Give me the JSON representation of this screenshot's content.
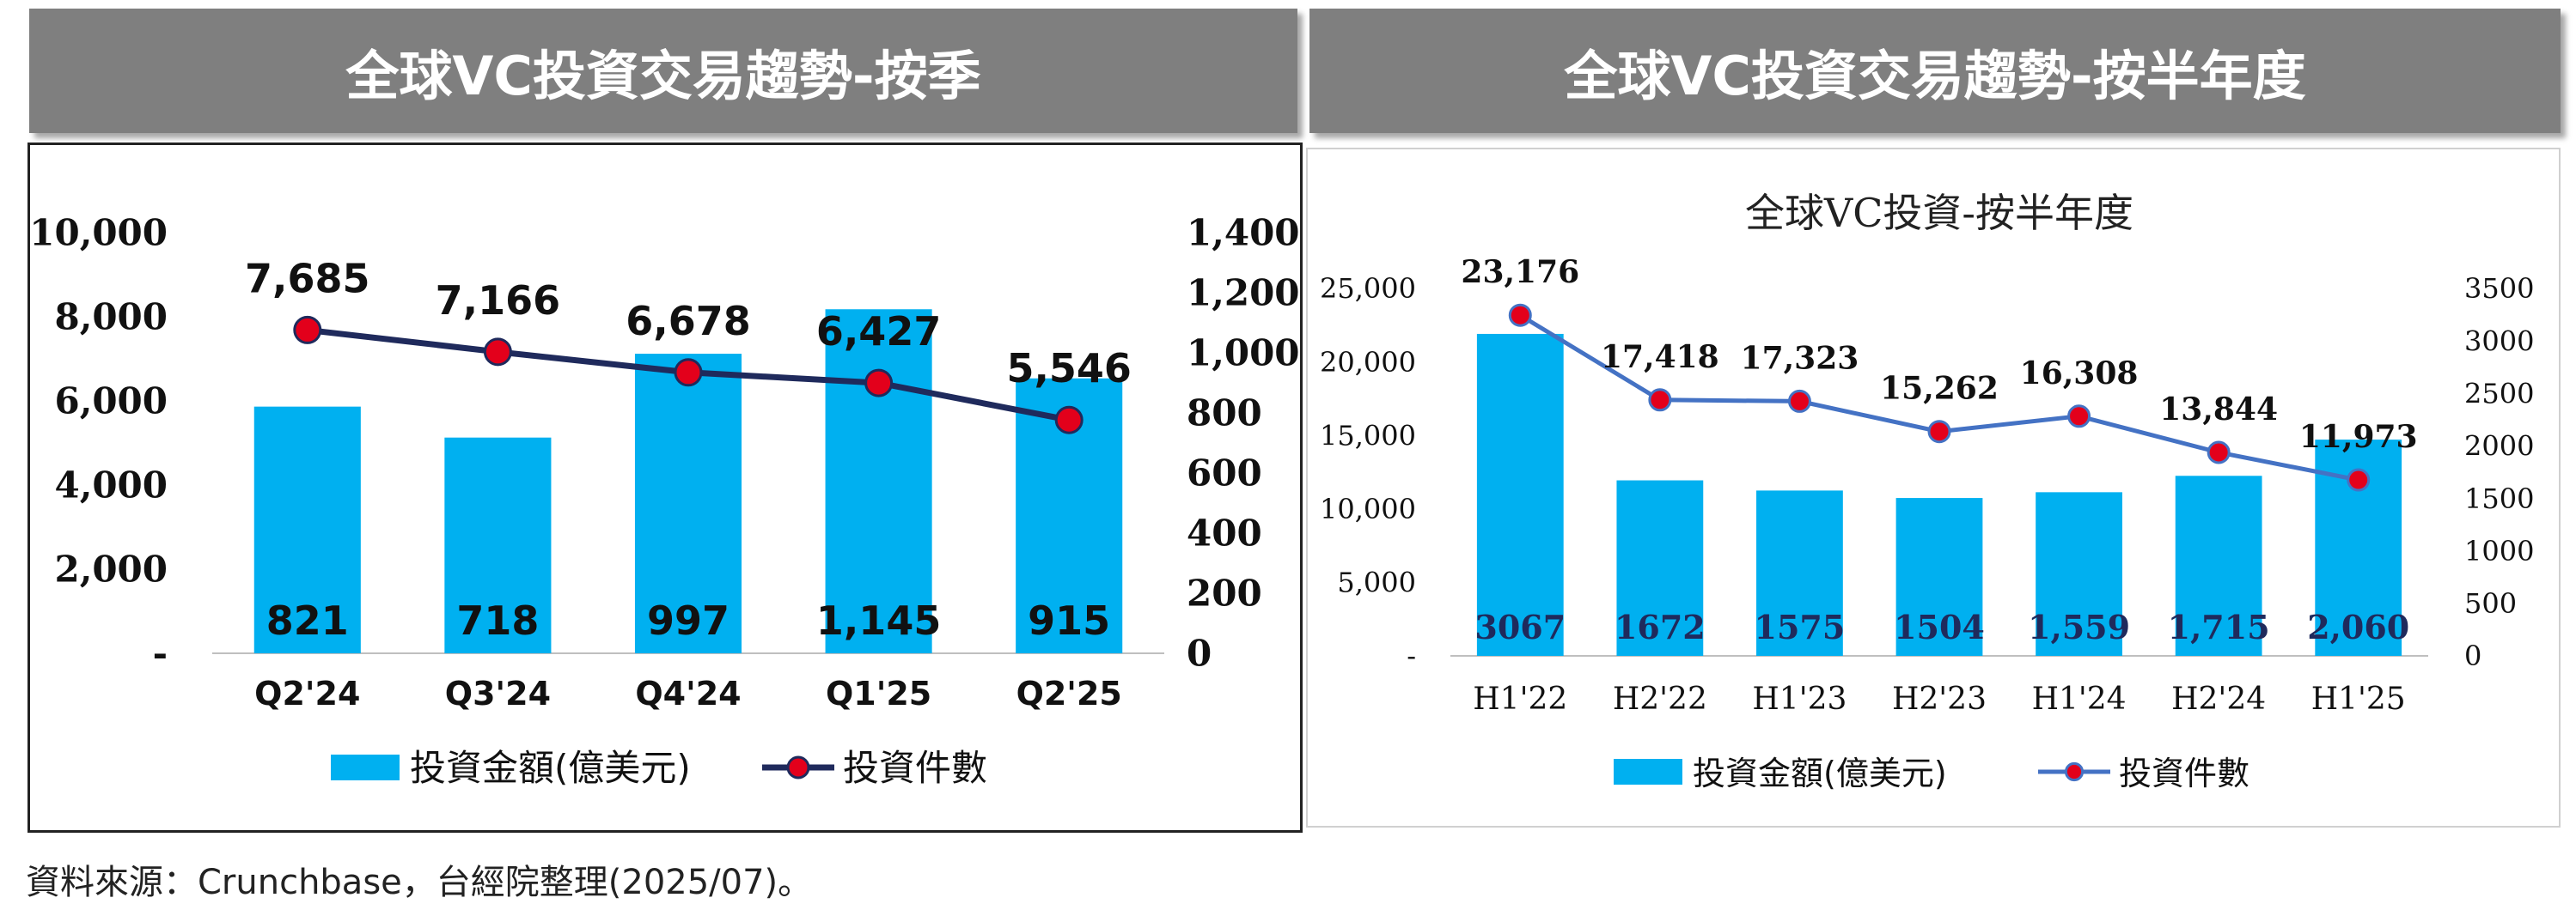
{
  "banners": {
    "left": "全球VC投資交易趨勢-按季",
    "right": "全球VC投資交易趨勢-按半年度"
  },
  "source_note": "資料來源：Crunchbase，台經院整理(2025/07)。",
  "colors": {
    "bar": "#00b0f0",
    "line_q": "#1f2a5c",
    "line_h": "#4472c4",
    "marker": "#e3001b",
    "banner": "#7f7f7f"
  },
  "chart_data": [
    {
      "type": "bar",
      "title": "",
      "categories": [
        "Q2'24",
        "Q3'24",
        "Q4'24",
        "Q1'25",
        "Q2'25"
      ],
      "series": [
        {
          "name": "投資金額(億美元)",
          "type": "bar",
          "axis": "left",
          "values": [
            821,
            718,
            997,
            1145,
            915
          ],
          "labels": [
            "821",
            "718",
            "997",
            "1,145",
            "915"
          ]
        },
        {
          "name": "投資件數",
          "type": "line",
          "axis": "right",
          "values": [
            7685,
            7166,
            6678,
            6427,
            5546
          ],
          "labels": [
            "7,685",
            "7,166",
            "6,678",
            "6,427",
            "5,546"
          ]
        }
      ],
      "left_axis": {
        "ylim": [
          0,
          10000
        ],
        "ticks": [
          "-",
          "2,000",
          "4,000",
          "6,000",
          "8,000",
          "10,000"
        ]
      },
      "right_axis": {
        "ylim": [
          0,
          1400
        ],
        "ticks": [
          "0",
          "200",
          "400",
          "600",
          "800",
          "1,000",
          "1,200",
          "1,400"
        ]
      },
      "legend": "bottom"
    },
    {
      "type": "bar",
      "title": "全球VC投資-按半年度",
      "categories": [
        "H1'22",
        "H2'22",
        "H1'23",
        "H2'23",
        "H1'24",
        "H2'24",
        "H1'25"
      ],
      "series": [
        {
          "name": "投資金額(億美元)",
          "type": "bar",
          "axis": "left",
          "values": [
            3067,
            1672,
            1575,
            1504,
            1559,
            1715,
            2060
          ],
          "labels": [
            "3067",
            "1672",
            "1575",
            "1504",
            "1,559",
            "1,715",
            "2,060"
          ]
        },
        {
          "name": "投資件數",
          "type": "line",
          "axis": "right",
          "values": [
            23176,
            17418,
            17323,
            15262,
            16308,
            13844,
            11973
          ],
          "labels": [
            "23,176",
            "17,418",
            "17,323",
            "15,262",
            "16,308",
            "13,844",
            "11,973"
          ]
        }
      ],
      "left_axis": {
        "ylim": [
          0,
          25000
        ],
        "ticks": [
          "-",
          "5,000",
          "10,000",
          "15,000",
          "20,000",
          "25,000"
        ]
      },
      "right_axis": {
        "ylim": [
          0,
          3500
        ],
        "ticks": [
          "0",
          "500",
          "1000",
          "1500",
          "2000",
          "2500",
          "3000",
          "3500"
        ]
      },
      "legend": "bottom"
    }
  ]
}
